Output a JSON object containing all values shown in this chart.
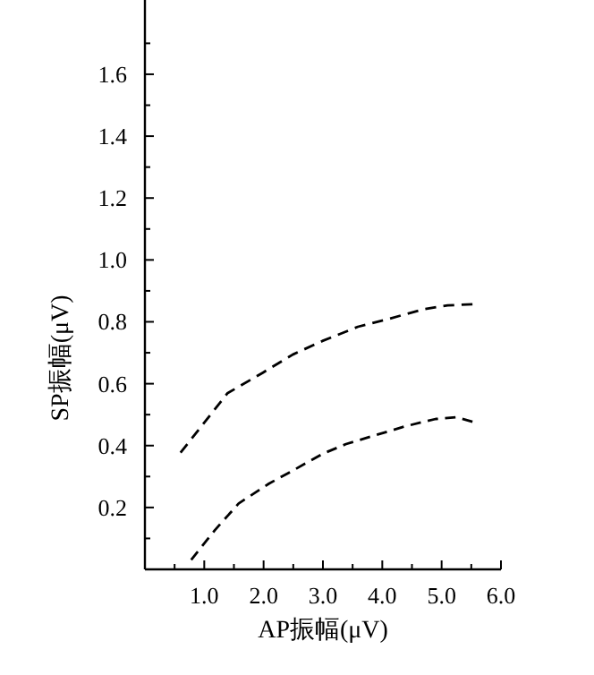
{
  "chart_data": {
    "type": "line",
    "xlabel": "AP振幅(μV)",
    "ylabel": "SP振幅(μV)",
    "line_style": "dashed",
    "grid": false,
    "xlim": [
      0,
      6.0
    ],
    "ylim": [
      0,
      1.84
    ],
    "xticks": [
      {
        "value": 0.5,
        "label": null
      },
      {
        "value": 1,
        "label": "1.0"
      },
      {
        "value": 1.5,
        "label": null
      },
      {
        "value": 2,
        "label": "2.0"
      },
      {
        "value": 2.5,
        "label": null
      },
      {
        "value": 3,
        "label": "3.0"
      },
      {
        "value": 3.5,
        "label": null
      },
      {
        "value": 4,
        "label": "4.0"
      },
      {
        "value": 4.5,
        "label": null
      },
      {
        "value": 5,
        "label": "5.0"
      },
      {
        "value": 5.5,
        "label": null
      },
      {
        "value": 6,
        "label": "6.0"
      }
    ],
    "yticks": [
      {
        "value": 0.1,
        "label": null
      },
      0.2,
      {
        "value": 0.3,
        "label": null
      },
      0.4,
      {
        "value": 0.5,
        "label": null
      },
      0.6,
      {
        "value": 0.7,
        "label": null
      },
      0.8,
      {
        "value": 0.9,
        "label": null
      },
      {
        "value": 1,
        "label": "1.0"
      },
      {
        "value": 1.1,
        "label": null
      },
      1.2,
      {
        "value": 1.3,
        "label": null
      },
      1.4,
      {
        "value": 1.5,
        "label": null
      },
      1.6,
      {
        "value": 1.7,
        "label": null
      }
    ],
    "series": [
      {
        "color": "#000000",
        "x": [
          0.6,
          1.39,
          1.99,
          2.49,
          2.99,
          3.59,
          4.1,
          4.7,
          5.1,
          5.52
        ],
        "values": [
          0.377,
          0.569,
          0.636,
          0.694,
          0.738,
          0.784,
          0.809,
          0.841,
          0.853,
          0.857
        ]
      },
      {
        "color": "#000000",
        "x": [
          0.78,
          1.18,
          1.58,
          2.09,
          2.49,
          2.99,
          3.39,
          3.89,
          4.4,
          4.9,
          5.25,
          5.52
        ],
        "values": [
          0.031,
          0.127,
          0.213,
          0.277,
          0.319,
          0.373,
          0.405,
          0.434,
          0.463,
          0.486,
          0.492,
          0.477
        ]
      }
    ]
  }
}
